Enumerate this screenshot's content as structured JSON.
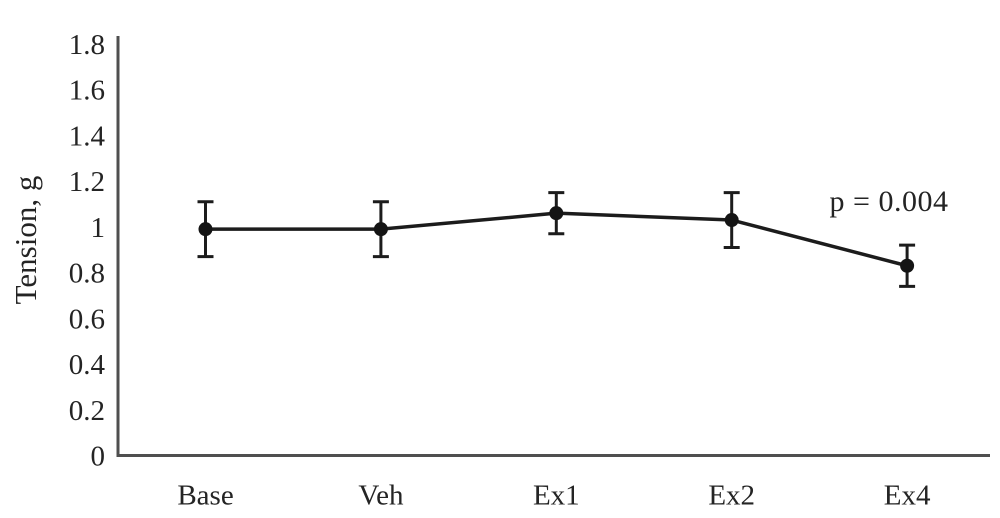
{
  "figure": {
    "background": "#ffffff"
  },
  "chart_data": {
    "type": "line",
    "categories": [
      "Base",
      "Veh",
      "Ex1",
      "Ex2",
      "Ex4"
    ],
    "series": [
      {
        "name": "Tension",
        "values": [
          0.99,
          0.99,
          1.06,
          1.03,
          0.83
        ],
        "errors": [
          0.12,
          0.12,
          0.09,
          0.12,
          0.09
        ]
      }
    ],
    "title": "",
    "xlabel": "",
    "ylabel": "Tension, g",
    "ylim": [
      0,
      1.8
    ],
    "yticks": [
      "1.8",
      "1.6",
      "1.4",
      "1.2",
      "1",
      "0.8",
      "0.6",
      "0.4",
      "0.2",
      "0"
    ],
    "annotation": "p = 0.004",
    "grid": false,
    "legend": "none",
    "error_bars": true,
    "marker": "filled-circle",
    "colors": {
      "line": "#1c1c1c",
      "marker": "#141414",
      "axis": "#4f4f4f",
      "text": "#242424",
      "background": "#ffffff"
    }
  }
}
